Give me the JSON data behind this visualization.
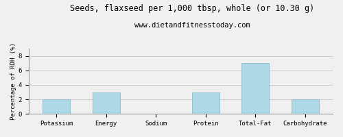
{
  "title": "Seeds, flaxseed per 1,000 tbsp, whole (or 10.30 g)",
  "subtitle": "www.dietandfitnesstoday.com",
  "categories": [
    "Potassium",
    "Energy",
    "Sodium",
    "Protein",
    "Total-Fat",
    "Carbohydrate"
  ],
  "values": [
    2.0,
    3.0,
    0.0,
    3.0,
    7.0,
    2.0
  ],
  "bar_color": "#add8e6",
  "bar_edge_color": "#88b8cc",
  "ylabel": "Percentage of RDH (%)",
  "ylim": [
    0,
    9
  ],
  "yticks": [
    0,
    2,
    4,
    6,
    8
  ],
  "grid_color": "#cccccc",
  "background_color": "#f0f0f0",
  "border_color": "#999999",
  "title_fontsize": 8.5,
  "subtitle_fontsize": 7.5,
  "ylabel_fontsize": 6.5,
  "tick_fontsize": 6.5,
  "xlabel_fontsize": 6.5
}
